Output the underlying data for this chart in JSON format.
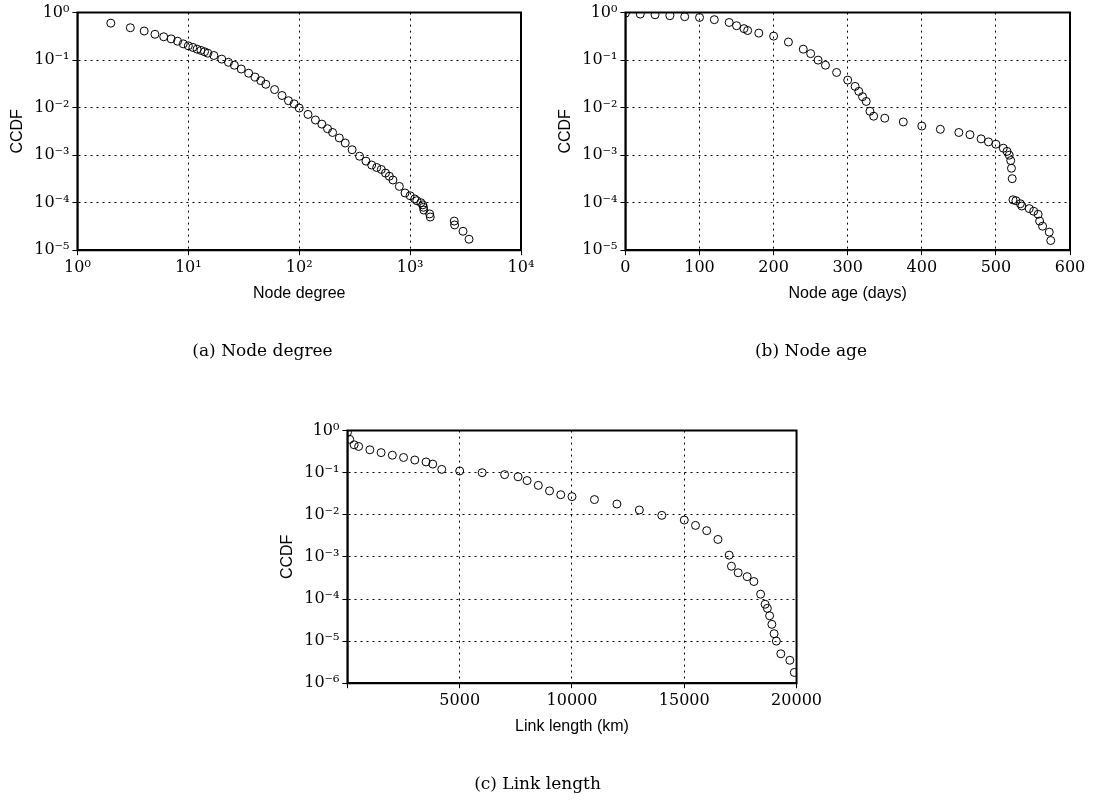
{
  "chart_data": [
    {
      "type": "scatter",
      "title": "(a) Node degree",
      "xlabel": "Node degree",
      "ylabel": "CCDF",
      "log": "xy",
      "grid": true,
      "marker": "circle",
      "color": "#000000",
      "xlim": [
        1,
        10000
      ],
      "xticks": [
        {
          "value": 1,
          "label": "10⁰"
        },
        {
          "value": 10,
          "label": "10¹"
        },
        {
          "value": 100,
          "label": "10²"
        },
        {
          "value": 1000,
          "label": "10³"
        },
        {
          "value": 10000,
          "label": "10⁴"
        }
      ],
      "ylim": [
        1e-05,
        1
      ],
      "yticks": [
        {
          "value": 1e-05,
          "label": "10⁻⁵"
        },
        {
          "value": 0.0001,
          "label": "10⁻⁴"
        },
        {
          "value": 0.001,
          "label": "10⁻³"
        },
        {
          "value": 0.01,
          "label": "10⁻²"
        },
        {
          "value": 0.1,
          "label": "10⁻¹"
        },
        {
          "value": 1,
          "label": "10⁰"
        }
      ],
      "x": [
        2,
        3,
        4,
        5,
        6,
        7,
        8,
        9,
        10,
        11,
        12,
        13,
        14,
        15,
        17,
        20,
        23,
        26,
        30,
        35,
        40,
        45,
        50,
        60,
        70,
        80,
        90,
        100,
        120,
        140,
        160,
        180,
        200,
        230,
        260,
        300,
        350,
        400,
        450,
        500,
        550,
        600,
        650,
        700,
        800,
        900,
        1000,
        1100,
        1150,
        1250,
        1300,
        1320,
        1330,
        1500,
        1520,
        2500,
        2520,
        3000,
        3400
      ],
      "values": [
        0.6,
        0.48,
        0.41,
        0.35,
        0.31,
        0.28,
        0.25,
        0.22,
        0.2,
        0.185,
        0.17,
        0.16,
        0.15,
        0.14,
        0.125,
        0.105,
        0.09,
        0.078,
        0.065,
        0.053,
        0.044,
        0.037,
        0.031,
        0.024,
        0.018,
        0.014,
        0.012,
        0.0098,
        0.0072,
        0.0055,
        0.0045,
        0.0036,
        0.003,
        0.0023,
        0.0018,
        0.0013,
        0.00095,
        0.00075,
        0.00062,
        0.00055,
        0.0005,
        0.00042,
        0.00036,
        0.0003,
        0.00022,
        0.00016,
        0.00014,
        0.00012,
        0.00011,
        0.0001,
        9e-05,
        8e-05,
        7e-05,
        5.8e-05,
        5e-05,
        4.1e-05,
        3.4e-05,
        2.5e-05,
        1.7e-05
      ]
    },
    {
      "type": "scatter",
      "title": "(b) Node age",
      "xlabel": "Node age (days)",
      "ylabel": "CCDF",
      "log": "y",
      "grid": true,
      "marker": "circle",
      "color": "#000000",
      "xlim": [
        0,
        600
      ],
      "xticks": [
        0,
        100,
        200,
        300,
        400,
        500,
        600
      ],
      "ylim": [
        1e-05,
        1
      ],
      "yticks": [
        {
          "value": 1e-05,
          "label": "10⁻⁵"
        },
        {
          "value": 0.0001,
          "label": "10⁻⁴"
        },
        {
          "value": 0.001,
          "label": "10⁻³"
        },
        {
          "value": 0.01,
          "label": "10⁻²"
        },
        {
          "value": 0.1,
          "label": "10⁻¹"
        },
        {
          "value": 1,
          "label": "10⁰"
        }
      ],
      "x": [
        0,
        20,
        40,
        60,
        80,
        100,
        120,
        140,
        150,
        160,
        165,
        180,
        200,
        220,
        240,
        250,
        260,
        270,
        285,
        300,
        310,
        315,
        320,
        325,
        330,
        335,
        350,
        375,
        400,
        425,
        450,
        465,
        480,
        490,
        500,
        510,
        515,
        518,
        520,
        521,
        522,
        523,
        527,
        533,
        535,
        545,
        551,
        557,
        559,
        563,
        572,
        574
      ],
      "values": [
        0.97,
        0.93,
        0.9,
        0.86,
        0.82,
        0.79,
        0.71,
        0.62,
        0.53,
        0.46,
        0.42,
        0.37,
        0.32,
        0.24,
        0.17,
        0.137,
        0.1,
        0.078,
        0.055,
        0.038,
        0.028,
        0.022,
        0.017,
        0.0135,
        0.0084,
        0.0066,
        0.006,
        0.005,
        0.0041,
        0.0035,
        0.003,
        0.0027,
        0.0022,
        0.0019,
        0.0017,
        0.0014,
        0.0012,
        0.001,
        0.00077,
        0.00053,
        0.00032,
        0.000115,
        0.00011,
        9.5e-05,
        8.5e-05,
        7.5e-05,
        6.6e-05,
        5.7e-05,
        4.1e-05,
        3.2e-05,
        2.4e-05,
        1.6e-05
      ]
    },
    {
      "type": "scatter",
      "title": "(c) Link length",
      "xlabel": "Link length (km)",
      "ylabel": "CCDF",
      "log": "y",
      "grid": true,
      "marker": "circle",
      "color": "#000000",
      "xlim": [
        0,
        20000
      ],
      "xticks": [
        {
          "value": 0,
          "label": null
        },
        5000,
        10000,
        15000,
        20000
      ],
      "ylim": [
        1e-06,
        1
      ],
      "yticks": [
        {
          "value": 1e-06,
          "label": "10⁻⁶"
        },
        {
          "value": 1e-05,
          "label": "10⁻⁵"
        },
        {
          "value": 0.0001,
          "label": "10⁻⁴"
        },
        {
          "value": 0.001,
          "label": "10⁻³"
        },
        {
          "value": 0.01,
          "label": "10⁻²"
        },
        {
          "value": 0.1,
          "label": "10⁻¹"
        },
        {
          "value": 1,
          "label": "10⁰"
        }
      ],
      "x": [
        0,
        100,
        300,
        500,
        1000,
        1500,
        2000,
        2500,
        3000,
        3500,
        3800,
        4200,
        5000,
        6000,
        7000,
        7600,
        8000,
        8500,
        9000,
        9500,
        10000,
        11000,
        12000,
        13000,
        14000,
        15000,
        15500,
        16000,
        16500,
        17000,
        17100,
        17400,
        17800,
        18100,
        18400,
        18600,
        18700,
        18800,
        18900,
        19000,
        19100,
        19300,
        19700,
        19900
      ],
      "values": [
        0.9,
        0.62,
        0.46,
        0.42,
        0.35,
        0.3,
        0.26,
        0.23,
        0.2,
        0.18,
        0.16,
        0.12,
        0.11,
        0.1,
        0.09,
        0.08,
        0.065,
        0.05,
        0.037,
        0.03,
        0.027,
        0.023,
        0.018,
        0.013,
        0.0097,
        0.0075,
        0.0056,
        0.0042,
        0.0026,
        0.0011,
        0.0006,
        0.00042,
        0.00034,
        0.00026,
        0.00013,
        7.5e-05,
        6e-05,
        4e-05,
        2.5e-05,
        1.5e-05,
        1e-05,
        5e-06,
        3.5e-06,
        1.8e-06
      ]
    }
  ]
}
